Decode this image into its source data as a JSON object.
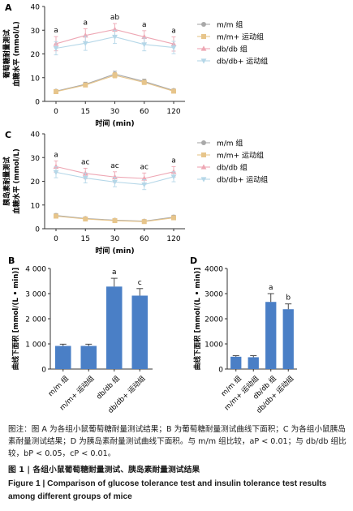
{
  "colors": {
    "mm": "#a9a9a9",
    "mm_ex": "#e7c58b",
    "dbdb": "#eea7b4",
    "dbdb_ex": "#b5d7e8",
    "bar": "#4a7fc6",
    "axis": "#333333"
  },
  "chart_data": [
    {
      "panel": "A",
      "type": "line",
      "ylabel": "葡萄糖耐量测试\n血糖水平 (mmol/L)",
      "xlabel": "时间 (min)",
      "x": [
        "0",
        "15",
        "30",
        "60",
        "120"
      ],
      "ylim": [
        0,
        40
      ],
      "yticks": [
        "0",
        "10",
        "20",
        "30",
        "40"
      ],
      "series": [
        {
          "name": "m/m 组",
          "values": [
            4.3,
            7.2,
            11.5,
            8.4,
            4.6
          ],
          "errors": [
            0.6,
            0.9,
            1.2,
            1.0,
            0.6
          ]
        },
        {
          "name": "m/m+ 运动组",
          "values": [
            4.1,
            6.9,
            11.0,
            8.0,
            4.3
          ],
          "errors": [
            0.6,
            0.8,
            1.1,
            0.9,
            0.6
          ]
        },
        {
          "name": "db/db 组",
          "values": [
            24.3,
            27.8,
            30.3,
            27.2,
            24.2
          ],
          "errors": [
            3.0,
            2.8,
            2.5,
            2.6,
            3.0
          ]
        },
        {
          "name": "db/db+ 运动组",
          "values": [
            22.4,
            24.5,
            27.2,
            24.0,
            22.7
          ],
          "errors": [
            2.8,
            3.0,
            2.8,
            2.7,
            2.6
          ]
        }
      ],
      "annotations": [
        "a",
        "a",
        "ab",
        "a",
        "a"
      ]
    },
    {
      "panel": "C",
      "type": "line",
      "ylabel": "胰岛素耐量测试\n血糖水平 (mmol/L)",
      "xlabel": "时间 (min)",
      "x": [
        "0",
        "15",
        "30",
        "60",
        "120"
      ],
      "ylim": [
        0,
        40
      ],
      "yticks": [
        "0",
        "10",
        "20",
        "30",
        "40"
      ],
      "series": [
        {
          "name": "m/m 组",
          "values": [
            5.6,
            4.3,
            3.6,
            3.2,
            4.9
          ],
          "errors": [
            0.8,
            0.6,
            0.5,
            0.5,
            0.8
          ]
        },
        {
          "name": "m/m+ 运动组",
          "values": [
            5.3,
            4.1,
            3.4,
            3.0,
            4.6
          ],
          "errors": [
            0.7,
            0.6,
            0.5,
            0.5,
            0.7
          ]
        },
        {
          "name": "db/db 组",
          "values": [
            26.2,
            23.3,
            21.8,
            21.2,
            24.0
          ],
          "errors": [
            2.4,
            2.2,
            2.2,
            2.3,
            2.2
          ]
        },
        {
          "name": "db/db+ 运动组",
          "values": [
            23.8,
            21.4,
            19.7,
            18.6,
            21.9
          ],
          "errors": [
            2.3,
            2.1,
            2.0,
            2.1,
            2.1
          ]
        }
      ],
      "annotations": [
        "a",
        "ac",
        "ac",
        "ac",
        "a"
      ]
    },
    {
      "panel": "B",
      "type": "bar",
      "ylabel": "曲线下面积 [mmol/(L • min)]",
      "categories": [
        "m/m 组",
        "m/m+ 运动组",
        "db/db 组",
        "db/db+ 运动组"
      ],
      "values": [
        920,
        920,
        3280,
        2920
      ],
      "errors": [
        70,
        70,
        330,
        280
      ],
      "ylim": [
        0,
        4000
      ],
      "yticks": [
        "0",
        "1 000",
        "2 000",
        "3 000",
        "4 000"
      ],
      "annotations": [
        "",
        "",
        "a",
        "c"
      ]
    },
    {
      "panel": "D",
      "type": "bar",
      "ylabel": "曲线下面积 [mmol/(L • min)]",
      "categories": [
        "m/m 组",
        "m/m+ 运动组",
        "db/db 组",
        "db/db+ 运动组"
      ],
      "values": [
        490,
        470,
        2670,
        2380
      ],
      "errors": [
        40,
        60,
        330,
        210
      ],
      "ylim": [
        0,
        4000
      ],
      "yticks": [
        "0",
        "1000",
        "2000",
        "3000",
        "4000"
      ],
      "annotations": [
        "",
        "",
        "a",
        "b"
      ]
    }
  ],
  "caption": {
    "note": "图注：图 A 为各组小鼠葡萄糖耐量测试结果；B 为葡萄糖耐量测试曲线下面积；C 为各组小鼠胰岛素耐量测试结果；D 为胰岛素耐量测试曲线下面积。与 m/m 组比较，aP < 0.01；与 db/db 组比较，bP < 0.05，cP < 0.01。",
    "title_cn": "图 1 | 各组小鼠葡萄糖耐量测试、胰岛素耐量测试结果",
    "title_en": "Figure 1 | Comparison of glucose tolerance test and insulin tolerance test results among different groups of mice"
  }
}
